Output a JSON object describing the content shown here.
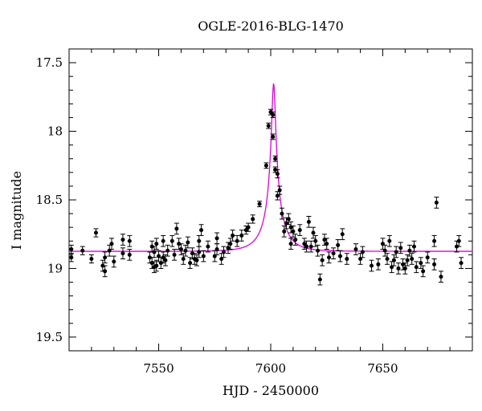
{
  "chart_data": {
    "type": "scatter",
    "title": "OGLE-2016-BLG-1470",
    "xlabel": "HJD - 2450000",
    "ylabel": "I magnitude",
    "xlim": [
      7510,
      7690
    ],
    "ylim": [
      19.6,
      17.4
    ],
    "y_inverted": true,
    "x_ticks": [
      7550,
      7600,
      7650
    ],
    "y_ticks": [
      17.5,
      18,
      18.5,
      19,
      19.5
    ],
    "x_tick_labels": [
      "7550",
      "7600",
      "7650"
    ],
    "y_tick_labels": [
      "17.5",
      "18",
      "18.5",
      "19",
      "19.5"
    ],
    "grid": false,
    "series": [
      {
        "kind": "points_with_errorbars",
        "color": "#000000",
        "points": [
          [
            7511,
            18.86,
            0.03
          ],
          [
            7511,
            18.92,
            0.03
          ],
          [
            7516,
            18.87,
            0.03
          ],
          [
            7520,
            18.93,
            0.03
          ],
          [
            7522,
            18.74,
            0.03
          ],
          [
            7525,
            18.98,
            0.04
          ],
          [
            7526,
            19.02,
            0.04
          ],
          [
            7526,
            18.92,
            0.04
          ],
          [
            7528,
            18.87,
            0.04
          ],
          [
            7529,
            18.82,
            0.04
          ],
          [
            7530,
            18.95,
            0.04
          ],
          [
            7534,
            18.79,
            0.04
          ],
          [
            7534,
            18.89,
            0.04
          ],
          [
            7537,
            18.8,
            0.04
          ],
          [
            7537,
            18.9,
            0.04
          ],
          [
            7546,
            18.92,
            0.04
          ],
          [
            7547,
            18.84,
            0.04
          ],
          [
            7547,
            18.96,
            0.04
          ],
          [
            7548,
            18.99,
            0.04
          ],
          [
            7548,
            18.88,
            0.04
          ],
          [
            7549,
            18.98,
            0.04
          ],
          [
            7549,
            18.82,
            0.04
          ],
          [
            7550,
            18.91,
            0.04
          ],
          [
            7551,
            18.96,
            0.04
          ],
          [
            7552,
            18.8,
            0.04
          ],
          [
            7552,
            18.92,
            0.04
          ],
          [
            7553,
            18.94,
            0.04
          ],
          [
            7554,
            18.87,
            0.04
          ],
          [
            7556,
            18.8,
            0.04
          ],
          [
            7557,
            18.9,
            0.04
          ],
          [
            7558,
            18.71,
            0.04
          ],
          [
            7559,
            18.82,
            0.04
          ],
          [
            7560,
            18.86,
            0.04
          ],
          [
            7561,
            18.93,
            0.04
          ],
          [
            7562,
            18.87,
            0.04
          ],
          [
            7563,
            18.81,
            0.04
          ],
          [
            7564,
            18.96,
            0.04
          ],
          [
            7565,
            18.89,
            0.04
          ],
          [
            7566,
            18.93,
            0.04
          ],
          [
            7567,
            18.94,
            0.04
          ],
          [
            7568,
            18.88,
            0.04
          ],
          [
            7568,
            18.8,
            0.04
          ],
          [
            7569,
            18.72,
            0.04
          ],
          [
            7570,
            18.91,
            0.04
          ],
          [
            7572,
            18.84,
            0.04
          ],
          [
            7575,
            18.91,
            0.04
          ],
          [
            7576,
            18.78,
            0.04
          ],
          [
            7576,
            18.86,
            0.04
          ],
          [
            7578,
            18.93,
            0.04
          ],
          [
            7579,
            18.88,
            0.04
          ],
          [
            7581,
            18.85,
            0.04
          ],
          [
            7582,
            18.82,
            0.04
          ],
          [
            7583,
            18.76,
            0.04
          ],
          [
            7585,
            18.8,
            0.04
          ],
          [
            7587,
            18.76,
            0.04
          ],
          [
            7589,
            18.72,
            0.03
          ],
          [
            7590,
            18.7,
            0.03
          ],
          [
            7592,
            18.64,
            0.03
          ],
          [
            7595,
            18.53,
            0.02
          ],
          [
            7598,
            18.25,
            0.02
          ],
          [
            7599,
            17.96,
            0.02
          ],
          [
            7600,
            17.86,
            0.02
          ],
          [
            7601,
            18.04,
            0.02
          ],
          [
            7601,
            17.88,
            0.02
          ],
          [
            7602,
            18.2,
            0.02
          ],
          [
            7602,
            18.28,
            0.02
          ],
          [
            7603,
            18.31,
            0.03
          ],
          [
            7603,
            18.47,
            0.03
          ],
          [
            7604,
            18.43,
            0.03
          ],
          [
            7605,
            18.6,
            0.04
          ],
          [
            7606,
            18.73,
            0.04
          ],
          [
            7607,
            18.67,
            0.04
          ],
          [
            7608,
            18.64,
            0.04
          ],
          [
            7609,
            18.7,
            0.04
          ],
          [
            7609,
            18.82,
            0.04
          ],
          [
            7610,
            18.73,
            0.04
          ],
          [
            7611,
            18.79,
            0.04
          ],
          [
            7613,
            18.72,
            0.04
          ],
          [
            7615,
            18.82,
            0.04
          ],
          [
            7616,
            18.84,
            0.04
          ],
          [
            7617,
            18.66,
            0.04
          ],
          [
            7618,
            18.84,
            0.04
          ],
          [
            7619,
            18.74,
            0.04
          ],
          [
            7620,
            18.8,
            0.04
          ],
          [
            7621,
            18.87,
            0.04
          ],
          [
            7622,
            19.08,
            0.04
          ],
          [
            7623,
            18.94,
            0.04
          ],
          [
            7624,
            18.79,
            0.04
          ],
          [
            7625,
            18.82,
            0.04
          ],
          [
            7626,
            18.92,
            0.04
          ],
          [
            7628,
            18.89,
            0.04
          ],
          [
            7630,
            18.83,
            0.04
          ],
          [
            7631,
            18.91,
            0.04
          ],
          [
            7632,
            18.75,
            0.04
          ],
          [
            7634,
            18.93,
            0.04
          ],
          [
            7638,
            18.86,
            0.04
          ],
          [
            7640,
            18.93,
            0.04
          ],
          [
            7641,
            18.88,
            0.04
          ],
          [
            7645,
            18.98,
            0.04
          ],
          [
            7648,
            18.97,
            0.04
          ],
          [
            7650,
            18.82,
            0.04
          ],
          [
            7651,
            18.87,
            0.04
          ],
          [
            7652,
            18.93,
            0.04
          ],
          [
            7653,
            18.8,
            0.04
          ],
          [
            7654,
            18.99,
            0.04
          ],
          [
            7655,
            18.94,
            0.04
          ],
          [
            7656,
            18.88,
            0.04
          ],
          [
            7657,
            19.0,
            0.04
          ],
          [
            7658,
            18.85,
            0.04
          ],
          [
            7659,
            18.97,
            0.04
          ],
          [
            7660,
            19.0,
            0.04
          ],
          [
            7661,
            18.94,
            0.04
          ],
          [
            7662,
            18.87,
            0.04
          ],
          [
            7663,
            18.93,
            0.04
          ],
          [
            7664,
            18.84,
            0.04
          ],
          [
            7665,
            18.99,
            0.04
          ],
          [
            7667,
            18.96,
            0.04
          ],
          [
            7668,
            19.02,
            0.04
          ],
          [
            7670,
            18.92,
            0.04
          ],
          [
            7673,
            18.97,
            0.04
          ],
          [
            7673,
            18.8,
            0.04
          ],
          [
            7674,
            18.52,
            0.04
          ],
          [
            7676,
            19.06,
            0.04
          ],
          [
            7683,
            18.84,
            0.04
          ],
          [
            7684,
            18.8,
            0.04
          ],
          [
            7685,
            18.96,
            0.04
          ]
        ]
      },
      {
        "kind": "model_curve",
        "color": "#dd00dd",
        "baseline": 18.875,
        "peak_mag": 17.65,
        "t0": 7601.3,
        "tE": 9,
        "u0": 0.09
      }
    ]
  }
}
